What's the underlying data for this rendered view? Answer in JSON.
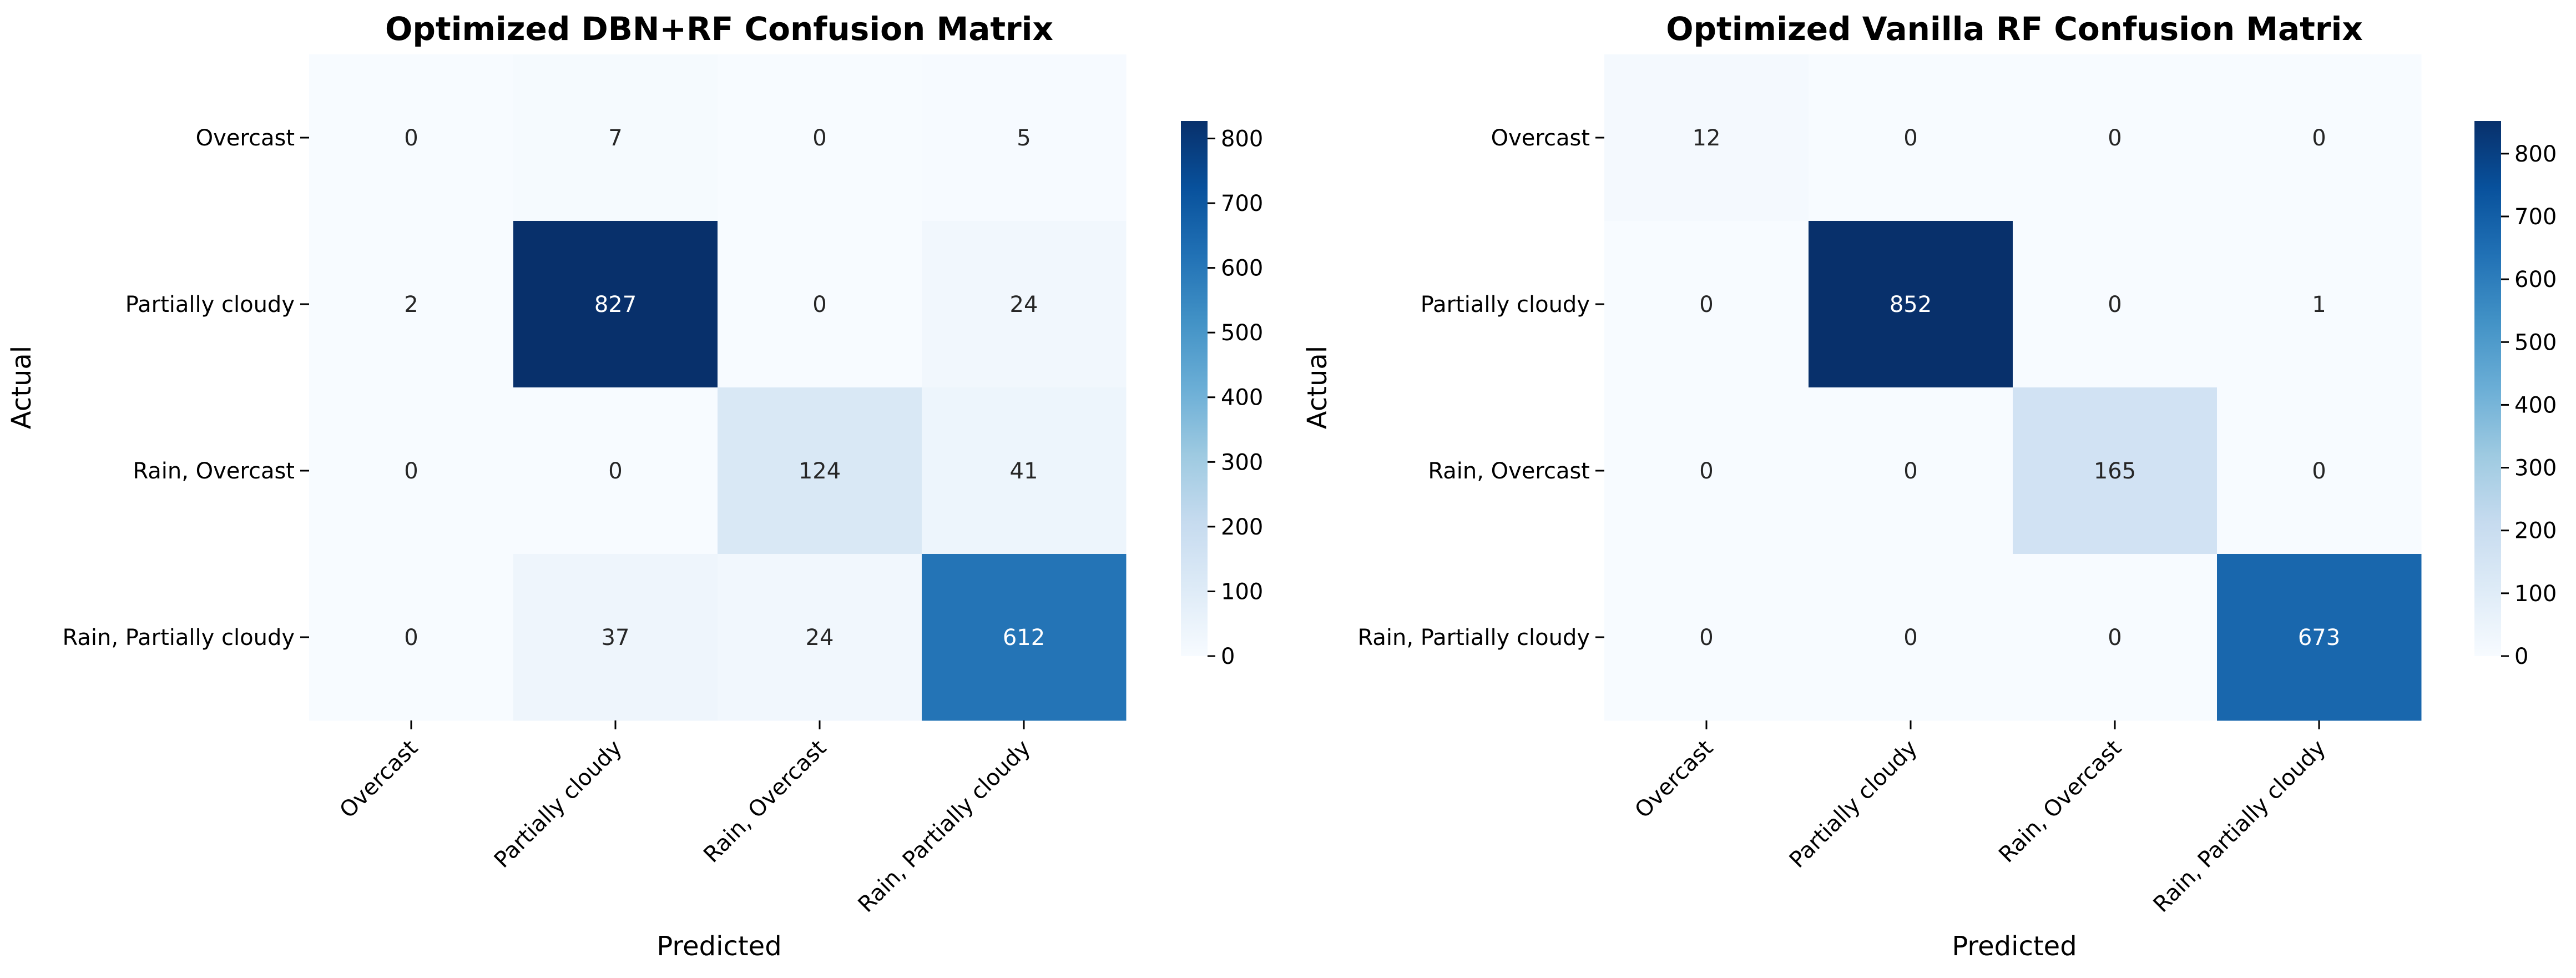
{
  "chart_data": [
    {
      "type": "heatmap",
      "title": "Optimized DBN+RF Confusion Matrix",
      "xlabel": "Predicted",
      "ylabel": "Actual",
      "x_categories": [
        "Overcast",
        "Partially cloudy",
        "Rain, Overcast",
        "Rain, Partially cloudy"
      ],
      "y_categories": [
        "Overcast",
        "Partially cloudy",
        "Rain, Overcast",
        "Rain, Partially cloudy"
      ],
      "values": [
        [
          0,
          7,
          0,
          5
        ],
        [
          2,
          827,
          0,
          24
        ],
        [
          0,
          0,
          124,
          41
        ],
        [
          0,
          37,
          24,
          612
        ]
      ],
      "colormap": "Blues",
      "colorbar": {
        "min": 0,
        "max": 827,
        "ticks": [
          "0",
          "100",
          "200",
          "300",
          "400",
          "500",
          "600",
          "700",
          "800"
        ]
      }
    },
    {
      "type": "heatmap",
      "title": "Optimized Vanilla RF Confusion Matrix",
      "xlabel": "Predicted",
      "ylabel": "Actual",
      "x_categories": [
        "Overcast",
        "Partially cloudy",
        "Rain, Overcast",
        "Rain, Partially cloudy"
      ],
      "y_categories": [
        "Overcast",
        "Partially cloudy",
        "Rain, Overcast",
        "Rain, Partially cloudy"
      ],
      "values": [
        [
          12,
          0,
          0,
          0
        ],
        [
          0,
          852,
          0,
          1
        ],
        [
          0,
          0,
          165,
          0
        ],
        [
          0,
          0,
          0,
          673
        ]
      ],
      "colormap": "Blues",
      "colorbar": {
        "min": 0,
        "max": 852,
        "ticks": [
          "0",
          "100",
          "200",
          "300",
          "400",
          "500",
          "600",
          "700",
          "800"
        ]
      }
    }
  ]
}
